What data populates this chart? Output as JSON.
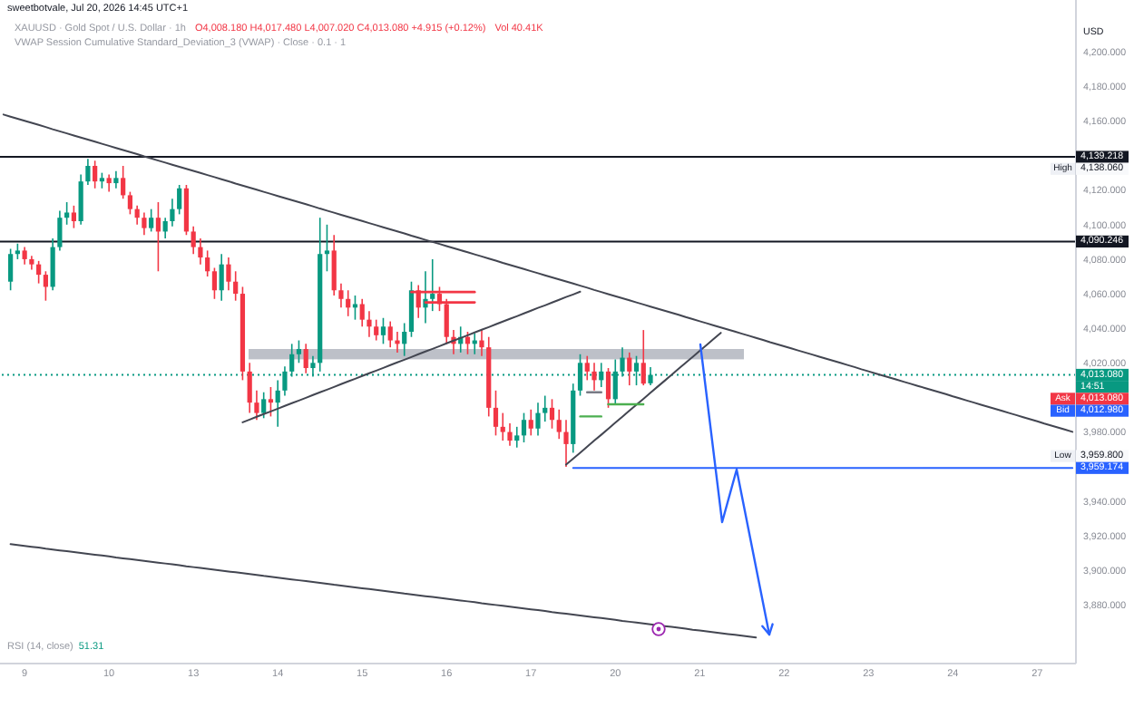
{
  "chart_data": {
    "type": "candlestick",
    "title": "XAUUSD · Gold Spot / U.S. Dollar · 1h",
    "subtitle": "VWAP Session Cumulative Standard_Deviation_3 (VWAP) · Close · 0.1 · 1",
    "ylabel": "USD",
    "annotations": [
      "sweetbotvale, Jul 20, 2026 14:45 UTC+1",
      "O4,008.180 H4,017.480 L4,007.020 C4,013.080 +4.915 (+0.12%)",
      "Vol 40.41K",
      "RSI (14, close)",
      "51.31",
      "14:51",
      "High",
      "4,138.060",
      "Low",
      "3,959.800",
      "Ask",
      "4,013.080",
      "Bid",
      "4,012.980"
    ],
    "categories": [
      null,
      null,
      null,
      "9",
      null,
      null,
      null,
      null,
      null,
      null,
      null,
      null,
      null,
      null,
      null,
      "10",
      null,
      null,
      null,
      null,
      null,
      null,
      null,
      null,
      null,
      null,
      null,
      "13",
      null,
      null,
      null,
      null,
      null,
      null,
      null,
      null,
      null,
      null,
      null,
      "14",
      null,
      null,
      null,
      null,
      null,
      null,
      null,
      null,
      null,
      null,
      null,
      "15",
      null,
      null,
      null,
      null,
      null,
      null,
      null,
      null,
      null,
      null,
      null,
      "16",
      null,
      null,
      null,
      null,
      null,
      null,
      null,
      null,
      null,
      null,
      null,
      "17",
      null,
      null,
      null,
      null,
      null,
      null,
      null,
      null,
      null,
      null,
      null,
      "20",
      null,
      null,
      null,
      null,
      null,
      null,
      null,
      null,
      null,
      null,
      null,
      "21",
      null,
      null,
      null,
      null,
      null,
      null,
      null,
      null,
      null,
      null,
      null,
      "22",
      null,
      null,
      null,
      null,
      null,
      null,
      null,
      null,
      null,
      null,
      null,
      "23",
      null,
      null,
      null,
      null,
      null,
      null,
      null,
      null,
      null,
      null,
      null,
      "24",
      null,
      null,
      null,
      null,
      null,
      null,
      null,
      null,
      null,
      null,
      null,
      "27",
      null,
      null,
      null,
      null,
      null
    ],
    "ohlc": [
      null,
      [
        4067,
        4086,
        4062,
        4083
      ],
      [
        4083,
        4089,
        4080,
        4085
      ],
      [
        4085,
        4087,
        4077,
        4080
      ],
      [
        4080,
        4082,
        4074,
        4077
      ],
      [
        4077,
        4079,
        4066,
        4071
      ],
      [
        4071,
        4073,
        4056,
        4064
      ],
      [
        4064,
        4092,
        4062,
        4087
      ],
      [
        4087,
        4108,
        4085,
        4104
      ],
      [
        4104,
        4113,
        4100,
        4107
      ],
      [
        4107,
        4111,
        4098,
        4102
      ],
      [
        4102,
        4129,
        4100,
        4125
      ],
      [
        4125,
        4138.06,
        4123,
        4134
      ],
      [
        4134,
        4137,
        4121,
        4125
      ],
      [
        4125,
        4130,
        4121,
        4127
      ],
      [
        4127,
        4129,
        4119,
        4124
      ],
      [
        4124,
        4131,
        4121,
        4127
      ],
      [
        4127,
        4134,
        4115,
        4117
      ],
      [
        4117,
        4119,
        4106,
        4109
      ],
      [
        4109,
        4111,
        4100,
        4104
      ],
      [
        4104,
        4107,
        4094,
        4098
      ],
      [
        4098,
        4109,
        4096,
        4104
      ],
      [
        4104,
        4113,
        4073,
        4096
      ],
      [
        4096,
        4104,
        4092,
        4102
      ],
      [
        4102,
        4115,
        4099,
        4109
      ],
      [
        4109,
        4123,
        4106,
        4121
      ],
      [
        4121,
        4123,
        4094,
        4096
      ],
      [
        4096,
        4099,
        4083,
        4087
      ],
      [
        4087,
        4092,
        4077,
        4081
      ],
      [
        4081,
        4085,
        4070,
        4073
      ],
      [
        4073,
        4075,
        4057,
        4062
      ],
      [
        4062,
        4083,
        4056,
        4077
      ],
      [
        4077,
        4081,
        4062,
        4067
      ],
      [
        4067,
        4073,
        4056,
        4060
      ],
      [
        4060,
        4064,
        4010,
        4015
      ],
      [
        4015,
        4020,
        3991,
        3997
      ],
      [
        3997,
        4004,
        3987,
        3991
      ],
      [
        3991,
        4003,
        3988,
        3999
      ],
      [
        3999,
        4006,
        3989,
        3997
      ],
      [
        3997,
        4010,
        3983,
        4004
      ],
      [
        4004,
        4018,
        4001,
        4015
      ],
      [
        4015,
        4031,
        4012,
        4025
      ],
      [
        4025,
        4033,
        4020,
        4028
      ],
      [
        4028,
        4031,
        4014,
        4017
      ],
      [
        4017,
        4024,
        4012,
        4020
      ],
      [
        4020,
        4104,
        4015,
        4083
      ],
      [
        4083,
        4100,
        4073,
        4085
      ],
      [
        4085,
        4094,
        4059,
        4062
      ],
      [
        4062,
        4066,
        4052,
        4057
      ],
      [
        4057,
        4062,
        4047,
        4052
      ],
      [
        4052,
        4059,
        4045,
        4054
      ],
      [
        4054,
        4057,
        4041,
        4045
      ],
      [
        4045,
        4050,
        4035,
        4041
      ],
      [
        4041,
        4045,
        4033,
        4036
      ],
      [
        4036,
        4046,
        4031,
        4041
      ],
      [
        4041,
        4044,
        4029,
        4033
      ],
      [
        4033,
        4038,
        4026,
        4031
      ],
      [
        4031,
        4043,
        4024,
        4038
      ],
      [
        4038,
        4067,
        4035,
        4062
      ],
      [
        4062,
        4065,
        4046,
        4052
      ],
      [
        4052,
        4073,
        4043,
        4057
      ],
      [
        4057,
        4080,
        4050,
        4060
      ],
      [
        4060,
        4064,
        4050,
        4054
      ],
      [
        4054,
        4057,
        4031,
        4035
      ],
      [
        4035,
        4039,
        4025,
        4031
      ],
      [
        4031,
        4041,
        4026,
        4035
      ],
      [
        4035,
        4038,
        4025,
        4031
      ],
      [
        4031,
        4037,
        4025,
        4033
      ],
      [
        4033,
        4039,
        4024,
        4029
      ],
      [
        4029,
        4035,
        3989,
        3994
      ],
      [
        3994,
        4004,
        3978,
        3983
      ],
      [
        3983,
        3991,
        3975,
        3980
      ],
      [
        3980,
        3985,
        3972,
        3975
      ],
      [
        3975,
        3983,
        3971,
        3978
      ],
      [
        3978,
        3991,
        3974,
        3987
      ],
      [
        3987,
        3993,
        3978,
        3982
      ],
      [
        3982,
        3997,
        3978,
        3991
      ],
      [
        3991,
        4001,
        3986,
        3994
      ],
      [
        3994,
        3999,
        3982,
        3987
      ],
      [
        3987,
        3993,
        3976,
        3980
      ],
      [
        3980,
        3987,
        3959.8,
        3973
      ],
      [
        3973,
        4008,
        3968,
        4004
      ],
      [
        4004,
        4025,
        4001,
        4020
      ],
      [
        4020,
        4024,
        4010,
        4015
      ],
      [
        4015,
        4020,
        4004,
        4010
      ],
      [
        4010,
        4020,
        4006,
        4015
      ],
      [
        4015,
        4017,
        3994,
        3999
      ],
      [
        3999,
        4022,
        3996,
        4015
      ],
      [
        4015,
        4029,
        4012,
        4023
      ],
      [
        4023,
        4026,
        4007,
        4015
      ],
      [
        4015,
        4024,
        4007,
        4020
      ],
      [
        4020,
        4039,
        4007,
        4008
      ],
      [
        4008.18,
        4017.48,
        4007.02,
        4013.08
      ],
      null,
      null,
      null,
      null,
      null,
      null,
      null,
      null,
      null,
      null,
      null,
      null,
      null,
      null,
      null,
      null,
      null,
      null,
      null,
      null,
      null,
      null,
      null,
      null,
      null,
      null,
      null,
      null,
      null,
      null,
      null,
      null,
      null,
      null,
      null,
      null,
      null,
      null,
      null,
      null,
      null,
      null,
      null,
      null,
      null,
      null,
      null,
      null,
      null,
      null,
      null,
      null,
      null,
      null,
      null,
      null,
      null,
      null,
      null,
      null
    ],
    "colors": [
      null,
      "#089981",
      "#089981",
      "#f23645",
      "#f23645",
      "#f23645",
      "#f23645",
      "#089981",
      "#089981",
      "#089981",
      "#f23645",
      "#089981",
      "#089981",
      "#f23645",
      "#089981",
      "#f23645",
      "#089981",
      "#f23645",
      "#f23645",
      "#f23645",
      "#f23645",
      "#089981",
      "#f23645",
      "#089981",
      "#089981",
      "#089981",
      "#f23645",
      "#f23645",
      "#f23645",
      "#f23645",
      "#f23645",
      "#089981",
      "#f23645",
      "#f23645",
      "#f23645",
      "#f23645",
      "#f23645",
      "#089981",
      "#f23645",
      "#089981",
      "#089981",
      "#089981",
      "#089981",
      "#f23645",
      "#089981",
      "#089981",
      "#089981",
      "#f23645",
      "#f23645",
      "#f23645",
      "#089981",
      "#f23645",
      "#f23645",
      "#f23645",
      "#089981",
      "#f23645",
      "#f23645",
      "#089981",
      "#089981",
      "#f23645",
      "#089981",
      "#089981",
      "#f23645",
      "#f23645",
      "#f23645",
      "#089981",
      "#f23645",
      "#089981",
      "#f23645",
      "#f23645",
      "#f23645",
      "#f23645",
      "#f23645",
      "#089981",
      "#089981",
      "#f23645",
      "#089981",
      "#089981",
      "#f23645",
      "#f23645",
      "#f23645",
      "#089981",
      "#089981",
      "#f23645",
      "#f23645",
      "#089981",
      "#f23645",
      "#089981",
      "#089981",
      "#f23645",
      "#089981",
      "#f23645",
      "#089981",
      null,
      null,
      null,
      null,
      null,
      null,
      null,
      null,
      null,
      null,
      null,
      null,
      null,
      null,
      null,
      null,
      null,
      null,
      null,
      null,
      null,
      null,
      null,
      null,
      null,
      null,
      null,
      null,
      null,
      null,
      null,
      null,
      null,
      null,
      null,
      null,
      null,
      null,
      null,
      null,
      null,
      null,
      null,
      null,
      null,
      null,
      null,
      null,
      null,
      null,
      null,
      null,
      null,
      null,
      null,
      null,
      null,
      null,
      null,
      null
    ],
    "series": [
      {
        "type": "line",
        "color": "#434651",
        "values": [
          4163.7,
          4162.5,
          4161.3,
          4160.1,
          4158.9,
          4157.7,
          4156.5,
          4155.2,
          4154.0,
          4152.8,
          4151.6,
          4150.4,
          4149.2,
          4148.0,
          4146.8,
          4145.6,
          4144.4,
          4143.2,
          4142.0,
          4140.8,
          4139.5,
          4138.3,
          4137.1,
          4135.9,
          4134.7,
          4133.5,
          4132.3,
          4131.1,
          4129.9,
          4128.7,
          4127.5,
          4126.3,
          4125.1,
          4123.8,
          4122.6,
          4121.4,
          4120.2,
          4119.0,
          4117.8,
          4116.6,
          4115.4,
          4114.2,
          4113.0,
          4111.8,
          4110.6,
          4109.3,
          4108.1,
          4106.9,
          4105.7,
          4104.5,
          4103.3,
          4102.1,
          4100.9,
          4099.7,
          4098.5,
          4097.3,
          4096.1,
          4094.9,
          4093.6,
          4092.4,
          4091.2,
          4090.0,
          4088.8,
          4087.6,
          4086.4,
          4085.2,
          4084.0,
          4082.8,
          4081.6,
          4080.4,
          4079.2,
          4077.9,
          4076.7,
          4075.5,
          4074.3,
          4073.1,
          4071.9,
          4070.7,
          4069.5,
          4068.3,
          4067.1,
          4065.9,
          4064.7,
          4063.5,
          4062.2,
          4061.0,
          4059.8,
          4058.6,
          4057.4,
          4056.2,
          4055.0,
          4053.8,
          4052.6,
          4051.4,
          4050.2,
          4049.0,
          4047.8,
          4046.5,
          4045.3,
          4044.1,
          4042.9,
          4041.7,
          4040.5,
          4039.3,
          4038.1,
          4036.9,
          4035.7,
          4034.5,
          4033.3,
          4032.0,
          4030.8,
          4029.6,
          4028.4,
          4027.2,
          4026.0,
          4024.8,
          4023.6,
          4022.4,
          4021.2,
          4020.0,
          4018.8,
          4017.6,
          4016.3,
          4015.1,
          4013.9,
          4012.7,
          4011.5,
          4010.3,
          4009.1,
          4007.9,
          4006.7,
          4005.5,
          4004.3,
          4003.1,
          4001.9,
          4000.6,
          3999.4,
          3998.2,
          3997.0,
          3995.8,
          3994.6,
          3993.4,
          3992.2,
          3991.0,
          3989.8,
          3988.6,
          3987.4,
          3986.2,
          3984.9,
          3983.7,
          3982.5,
          3981.3,
          3980.1
        ]
      },
      {
        "type": "line",
        "color": "#434651",
        "values": [
          null,
          3915.1,
          3914.6,
          3914.1,
          3913.6,
          3913.1,
          3912.5,
          3912.0,
          3911.5,
          3911.0,
          3910.5,
          3910.0,
          3909.5,
          3909.0,
          3908.5,
          3908.0,
          3907.4,
          3906.9,
          3906.4,
          3905.9,
          3905.4,
          3904.9,
          3904.4,
          3903.9,
          3903.4,
          3902.9,
          3902.3,
          3901.8,
          3901.3,
          3900.8,
          3900.3,
          3899.8,
          3899.3,
          3898.8,
          3898.3,
          3897.8,
          3897.3,
          3896.7,
          3896.2,
          3895.7,
          3895.2,
          3894.7,
          3894.2,
          3893.7,
          3893.2,
          3892.7,
          3892.2,
          3891.6,
          3891.1,
          3890.6,
          3890.1,
          3889.6,
          3889.1,
          3888.6,
          3888.1,
          3887.6,
          3887.1,
          3886.5,
          3886.0,
          3885.5,
          3885.0,
          3884.5,
          3884.0,
          3883.5,
          3883.0,
          3882.5,
          3882.0,
          3881.5,
          3880.9,
          3880.4,
          3879.9,
          3879.4,
          3878.9,
          3878.4,
          3877.9,
          3877.4,
          3876.9,
          3876.4,
          3875.8,
          3875.3,
          3874.8,
          3874.3,
          3873.8,
          3873.3,
          3872.8,
          3872.3,
          3871.8,
          3871.3,
          3870.7,
          3870.2,
          3869.7,
          3869.2,
          3868.7,
          3868.2,
          3867.7,
          3867.2,
          3866.7,
          3866.2,
          3865.6,
          3865.1,
          3864.6,
          3864.1,
          3863.6,
          3863.1,
          3862.6,
          3862.1,
          3861.6,
          3861.1,
          null,
          null,
          null,
          null,
          null,
          null,
          null,
          null,
          null,
          null,
          null,
          null,
          null,
          null,
          null,
          null,
          null,
          null,
          null,
          null,
          null,
          null,
          null,
          null,
          null,
          null,
          null,
          null,
          null,
          null,
          null,
          null,
          null,
          null,
          null,
          null,
          null,
          null,
          null,
          null,
          null,
          null,
          null,
          null,
          null
        ]
      },
      {
        "type": "line",
        "color": "#434651",
        "values": [
          null,
          null,
          null,
          null,
          null,
          null,
          null,
          null,
          null,
          null,
          null,
          null,
          null,
          null,
          null,
          null,
          null,
          null,
          null,
          null,
          null,
          null,
          null,
          null,
          null,
          null,
          null,
          null,
          null,
          null,
          null,
          null,
          null,
          null,
          3985.6,
          3987.2,
          3988.8,
          3990.4,
          3991.9,
          3993.5,
          3995.1,
          3996.7,
          3998.2,
          3999.8,
          4001.4,
          4003.0,
          4004.5,
          4006.1,
          4007.7,
          4009.3,
          4010.8,
          4012.4,
          4014.0,
          4015.5,
          4017.1,
          4018.7,
          4020.3,
          4021.8,
          4023.4,
          4025.0,
          4026.6,
          4028.1,
          4029.7,
          4031.3,
          4032.9,
          4034.4,
          4036.0,
          4037.6,
          4039.2,
          4040.7,
          4042.3,
          4043.9,
          4045.5,
          4047.0,
          4048.6,
          4050.2,
          4051.8,
          4053.3,
          4054.9,
          4056.5,
          4058.1,
          4059.6,
          4061.2,
          null,
          null,
          null,
          null,
          null,
          null,
          null,
          null,
          null,
          null,
          null,
          null,
          null,
          null,
          null,
          null,
          null,
          null,
          null,
          null,
          null,
          null,
          null,
          null,
          null,
          null,
          null,
          null,
          null,
          null,
          null,
          null,
          null,
          null,
          null,
          null,
          null,
          null,
          null,
          null,
          null,
          null,
          null,
          null,
          null,
          null,
          null,
          null,
          null,
          null,
          null,
          null,
          null,
          null,
          null,
          null,
          null,
          null,
          null,
          null,
          null,
          null,
          null,
          null,
          null,
          null,
          null,
          null,
          null,
          null
        ]
      },
      {
        "type": "line",
        "color": "#434651",
        "values": [
          null,
          null,
          null,
          null,
          null,
          null,
          null,
          null,
          null,
          null,
          null,
          null,
          null,
          null,
          null,
          null,
          null,
          null,
          null,
          null,
          null,
          null,
          null,
          null,
          null,
          null,
          null,
          null,
          null,
          null,
          null,
          null,
          null,
          null,
          null,
          null,
          null,
          null,
          null,
          null,
          null,
          null,
          null,
          null,
          null,
          null,
          null,
          null,
          null,
          null,
          null,
          null,
          null,
          null,
          null,
          null,
          null,
          null,
          null,
          null,
          null,
          null,
          null,
          null,
          null,
          null,
          null,
          null,
          null,
          null,
          null,
          null,
          null,
          null,
          null,
          null,
          null,
          null,
          null,
          null,
          3961.1,
          3964.6,
          3968.0,
          3971.5,
          3975.0,
          3978.4,
          3981.9,
          3985.4,
          3988.8,
          3992.3,
          3995.8,
          3999.2,
          4002.7,
          4006.2,
          4009.6,
          4013.1,
          4016.6,
          4020.0,
          4023.5,
          4027.0,
          4030.4,
          4033.9,
          4037.4,
          null,
          null,
          null,
          null,
          null,
          null,
          null,
          null,
          null,
          null,
          null,
          null,
          null,
          null,
          null,
          null,
          null,
          null,
          null,
          null,
          null,
          null,
          null,
          null,
          null,
          null,
          null,
          null,
          null,
          null,
          null,
          null,
          null,
          null,
          null,
          null,
          null,
          null,
          null,
          null,
          null,
          null,
          null,
          null,
          null,
          null,
          null,
          null,
          null,
          null
        ]
      },
      {
        "type": "line",
        "color": "#2962ff",
        "values": [
          null,
          null,
          null,
          null,
          null,
          null,
          null,
          null,
          null,
          null,
          null,
          null,
          null,
          null,
          null,
          null,
          null,
          null,
          null,
          null,
          null,
          null,
          null,
          null,
          null,
          null,
          null,
          null,
          null,
          null,
          null,
          null,
          null,
          null,
          null,
          null,
          null,
          null,
          null,
          null,
          null,
          null,
          null,
          null,
          null,
          null,
          null,
          null,
          null,
          null,
          null,
          null,
          null,
          null,
          null,
          null,
          null,
          null,
          null,
          null,
          null,
          null,
          null,
          null,
          null,
          null,
          null,
          null,
          null,
          null,
          null,
          null,
          null,
          null,
          null,
          null,
          null,
          null,
          null,
          null,
          null,
          3959.174,
          3959.174,
          3959.174,
          3959.174,
          3959.174,
          3959.174,
          3959.174,
          3959.174,
          3959.174,
          3959.174,
          3959.174,
          3959.174,
          3959.174,
          3959.174,
          3959.174,
          3959.174,
          3959.174,
          3959.174,
          3959.174,
          3959.174,
          3959.174,
          3959.174,
          3959.174,
          3959.174,
          3959.174,
          3959.174,
          3959.174,
          3959.174,
          3959.174,
          3959.174,
          3959.174,
          3959.174,
          3959.174,
          3959.174,
          3959.174,
          3959.174,
          3959.174,
          3959.174,
          3959.174,
          3959.174,
          3959.174,
          3959.174,
          3959.174,
          3959.174,
          3959.174,
          3959.174,
          3959.174,
          3959.174,
          3959.174,
          3959.174,
          3959.174,
          3959.174,
          3959.174,
          3959.174,
          3959.174,
          3959.174,
          3959.174,
          3959.174,
          3959.174,
          3959.174,
          3959.174,
          3959.174,
          3959.174,
          3959.174,
          3959.174,
          3959.174,
          3959.174,
          3959.174,
          3959.174,
          3959.174,
          3959.174,
          3959.174
        ],
        "value_labels": [
          null,
          null,
          null,
          null,
          null,
          null,
          null,
          null,
          null,
          null,
          null,
          null,
          null,
          null,
          null,
          null,
          null,
          null,
          null,
          null,
          null,
          null,
          null,
          null,
          null,
          null,
          null,
          null,
          null,
          null,
          null,
          null,
          null,
          null,
          null,
          null,
          null,
          null,
          null,
          null,
          null,
          null,
          null,
          null,
          null,
          null,
          null,
          null,
          null,
          null,
          null,
          null,
          null,
          null,
          null,
          null,
          null,
          null,
          null,
          null,
          null,
          null,
          null,
          null,
          null,
          null,
          null,
          null,
          null,
          null,
          null,
          null,
          null,
          null,
          null,
          null,
          null,
          null,
          null,
          null,
          null,
          null,
          null,
          null,
          null,
          null,
          null,
          null,
          null,
          null,
          null,
          null,
          null,
          null,
          null,
          null,
          null,
          null,
          null,
          null,
          null,
          null,
          null,
          null,
          null,
          null,
          null,
          null,
          null,
          null,
          null,
          null,
          null,
          null,
          null,
          null,
          null,
          null,
          null,
          null,
          null,
          null,
          null,
          null,
          null,
          null,
          null,
          null,
          null,
          null,
          null,
          null,
          null,
          null,
          null,
          null,
          null,
          null,
          null,
          null,
          null,
          null,
          null,
          null,
          null,
          null,
          null,
          null,
          null,
          null,
          null,
          null,
          "3,959.174"
        ]
      },
      {
        "type": "line",
        "color": "#f23645",
        "values": [
          null,
          null,
          null,
          null,
          null,
          null,
          null,
          null,
          null,
          null,
          null,
          null,
          null,
          null,
          null,
          null,
          null,
          null,
          null,
          null,
          null,
          null,
          null,
          null,
          null,
          null,
          null,
          null,
          null,
          null,
          null,
          null,
          null,
          null,
          null,
          null,
          null,
          null,
          null,
          null,
          null,
          null,
          null,
          null,
          null,
          null,
          null,
          null,
          null,
          null,
          null,
          null,
          null,
          null,
          null,
          null,
          null,
          null,
          4061,
          4061,
          4061,
          4061,
          4061,
          4061,
          4061,
          4061,
          4061,
          4061,
          null,
          null,
          null,
          null,
          null,
          null,
          null,
          null,
          null,
          null,
          null,
          null,
          null,
          null,
          null,
          null,
          null,
          null,
          null,
          null,
          null,
          null,
          null,
          null,
          null,
          null,
          null,
          null,
          null,
          null,
          null,
          null,
          null,
          null,
          null,
          null,
          null,
          null,
          null,
          null,
          null,
          null,
          null,
          null,
          null,
          null,
          null,
          null,
          null,
          null,
          null,
          null,
          null,
          null,
          null,
          null,
          null,
          null,
          null,
          null,
          null,
          null,
          null,
          null,
          null,
          null,
          null,
          null,
          null,
          null,
          null,
          null,
          null,
          null,
          null,
          null,
          null,
          null,
          null,
          null,
          null,
          null,
          null,
          null,
          null
        ]
      },
      {
        "type": "line",
        "color": "#f23645",
        "values": [
          null,
          null,
          null,
          null,
          null,
          null,
          null,
          null,
          null,
          null,
          null,
          null,
          null,
          null,
          null,
          null,
          null,
          null,
          null,
          null,
          null,
          null,
          null,
          null,
          null,
          null,
          null,
          null,
          null,
          null,
          null,
          null,
          null,
          null,
          null,
          null,
          null,
          null,
          null,
          null,
          null,
          null,
          null,
          null,
          null,
          null,
          null,
          null,
          null,
          null,
          null,
          null,
          null,
          null,
          null,
          null,
          null,
          null,
          null,
          null,
          4055,
          4055,
          4055,
          4055,
          4055,
          4055,
          4055,
          4055,
          null,
          null,
          null,
          null,
          null,
          null,
          null,
          null,
          null,
          null,
          null,
          null,
          null,
          null,
          null,
          null,
          null,
          null,
          null,
          null,
          null,
          null,
          null,
          null,
          null,
          null,
          null,
          null,
          null,
          null,
          null,
          null,
          null,
          null,
          null,
          null,
          null,
          null,
          null,
          null,
          null,
          null,
          null,
          null,
          null,
          null,
          null,
          null,
          null,
          null,
          null,
          null,
          null,
          null,
          null,
          null,
          null,
          null,
          null,
          null,
          null,
          null,
          null,
          null,
          null,
          null,
          null,
          null,
          null,
          null,
          null,
          null,
          null,
          null,
          null,
          null,
          null,
          null,
          null,
          null,
          null,
          null,
          null,
          null,
          null
        ]
      },
      {
        "type": "line",
        "color": "#787b86",
        "values": [
          null,
          null,
          null,
          null,
          null,
          null,
          null,
          null,
          null,
          null,
          null,
          null,
          null,
          null,
          null,
          null,
          null,
          null,
          null,
          null,
          null,
          null,
          null,
          null,
          null,
          null,
          null,
          null,
          null,
          null,
          null,
          null,
          null,
          null,
          null,
          null,
          null,
          null,
          null,
          null,
          null,
          null,
          null,
          null,
          null,
          null,
          null,
          null,
          null,
          null,
          null,
          null,
          null,
          null,
          null,
          null,
          null,
          null,
          null,
          null,
          null,
          null,
          null,
          null,
          null,
          null,
          null,
          null,
          null,
          null,
          null,
          null,
          null,
          null,
          null,
          null,
          null,
          null,
          null,
          null,
          null,
          null,
          null,
          4003,
          4003,
          4003,
          null,
          null,
          null,
          null,
          null,
          null,
          null,
          null,
          null,
          null,
          null,
          null,
          null,
          null,
          null,
          null,
          null,
          null,
          null,
          null,
          null,
          null,
          null,
          null,
          null,
          null,
          null,
          null,
          null,
          null,
          null,
          null,
          null,
          null,
          null,
          null,
          null,
          null,
          null,
          null,
          null,
          null,
          null,
          null,
          null,
          null,
          null,
          null,
          null,
          null,
          null,
          null,
          null,
          null,
          null,
          null,
          null,
          null,
          null,
          null,
          null,
          null,
          null,
          null,
          null,
          null,
          null
        ]
      }
    ],
    "ref_lines": [
      {
        "axis": "y",
        "value": 4139.218,
        "label": "4,139.218",
        "color": "#131722"
      },
      {
        "axis": "y",
        "value": 4090.246,
        "label": "4,090.246",
        "color": "#131722"
      },
      {
        "axis": "y",
        "value": 4013.08,
        "label": "4,013.080",
        "color": "#089981",
        "line_style": "dotted"
      }
    ],
    "ylim": [
      3846,
      4230
    ],
    "yticks": [
      {
        "value": 4200,
        "label": "4,200.000"
      },
      {
        "value": 4180,
        "label": "4,180.000"
      },
      {
        "value": 4160,
        "label": "4,160.000"
      },
      {
        "value": 4120,
        "label": "4,120.000"
      },
      {
        "value": 4100,
        "label": "4,100.000"
      },
      {
        "value": 4080,
        "label": "4,080.000"
      },
      {
        "value": 4060,
        "label": "4,060.000"
      },
      {
        "value": 4040,
        "label": "4,040.000"
      },
      {
        "value": 4020,
        "label": "4,020.000"
      },
      {
        "value": 3980,
        "label": "3,980.000"
      },
      {
        "value": 3940,
        "label": "3,940.000"
      },
      {
        "value": 3920,
        "label": "3,920.000"
      },
      {
        "value": 3900,
        "label": "3,900.000"
      },
      {
        "value": 3880,
        "label": "3,880.000"
      }
    ]
  }
}
